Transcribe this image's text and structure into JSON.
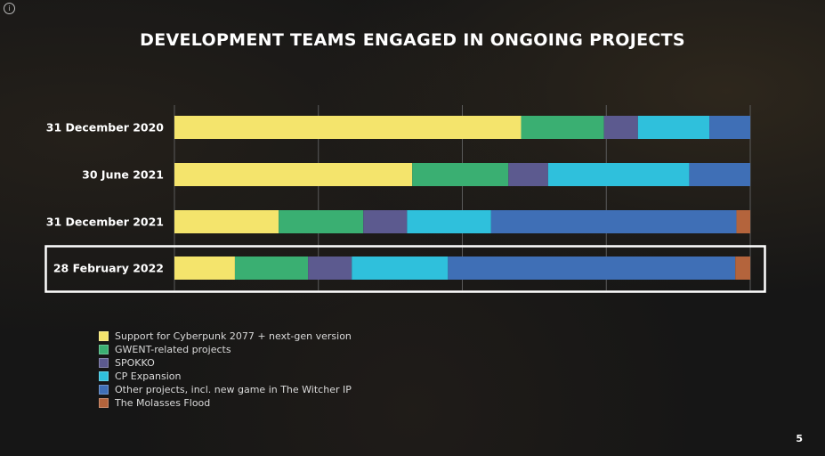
{
  "slide": {
    "title": "DEVELOPMENT TEAMS ENGAGED IN ONGOING PROJECTS",
    "page_number": "5",
    "background_color": "#161616"
  },
  "chart_data": {
    "type": "bar",
    "orientation": "horizontal",
    "stacked": true,
    "normalized": true,
    "title": "DEVELOPMENT TEAMS ENGAGED IN ONGOING PROJECTS",
    "categories": [
      "31 December 2020",
      "30 June 2021",
      "31 December 2021",
      "28 February 2022"
    ],
    "highlighted_category": "28 February 2022",
    "xlim": [
      0,
      100
    ],
    "grid": true,
    "legend_position": "bottom-left",
    "series": [
      {
        "name": "Support for Cyberpunk 2077 + next-gen version",
        "color": "#f4e46c",
        "values": [
          60.2,
          41.3,
          18.1,
          10.5
        ]
      },
      {
        "name": "GWENT-related projects",
        "color": "#3aaf72",
        "values": [
          14.4,
          16.7,
          14.7,
          12.7
        ]
      },
      {
        "name": "SPOKKO",
        "color": "#5c5a8f",
        "values": [
          5.9,
          6.9,
          7.6,
          7.6
        ]
      },
      {
        "name": "CP Expansion",
        "color": "#2fc0dc",
        "values": [
          12.4,
          24.5,
          14.6,
          16.7
        ]
      },
      {
        "name": "Other projects, incl. new game in The Witcher IP",
        "color": "#3f6fb6",
        "values": [
          7.1,
          10.6,
          42.6,
          49.9
        ]
      },
      {
        "name": "The Molasses Flood",
        "color": "#b4643c",
        "values": [
          0,
          0,
          2.4,
          2.6
        ]
      }
    ]
  }
}
